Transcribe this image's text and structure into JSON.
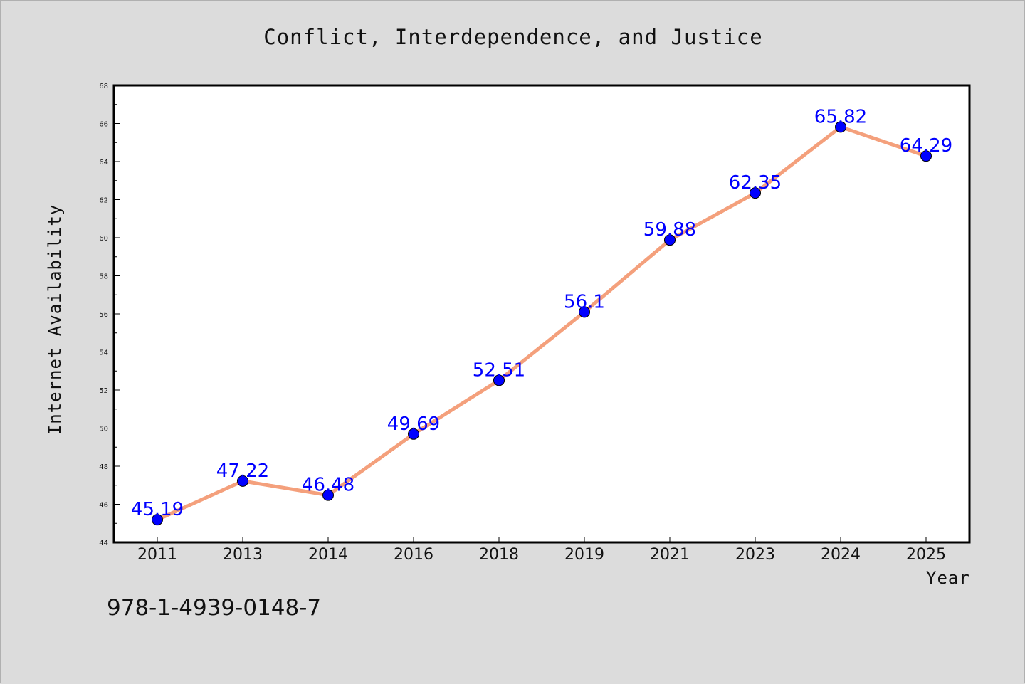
{
  "colors": {
    "background": "#dcdcdc",
    "plot_background": "#ffffff",
    "line": "#f4a07c",
    "marker": "#0000ff",
    "data_label": "#0000ff"
  },
  "footer": {
    "isbn": "978-1-4939-0148-7"
  },
  "chart_data": {
    "type": "line",
    "title": "Conflict, Interdependence, and Justice",
    "xlabel": "Year",
    "ylabel": "Internet Availability",
    "categories": [
      "2011",
      "2013",
      "2014",
      "2016",
      "2018",
      "2019",
      "2021",
      "2023",
      "2024",
      "2025"
    ],
    "series": [
      {
        "values": [
          45.19,
          47.22,
          46.48,
          49.69,
          52.51,
          56.1,
          59.88,
          62.35,
          65.82,
          64.29
        ]
      }
    ],
    "ylim": [
      44,
      68
    ],
    "yticks": [
      44,
      46,
      48,
      50,
      52,
      54,
      56,
      58,
      60,
      62,
      64,
      66,
      68
    ],
    "grid": false,
    "legend": "none",
    "markers": true,
    "data_labels": true
  }
}
